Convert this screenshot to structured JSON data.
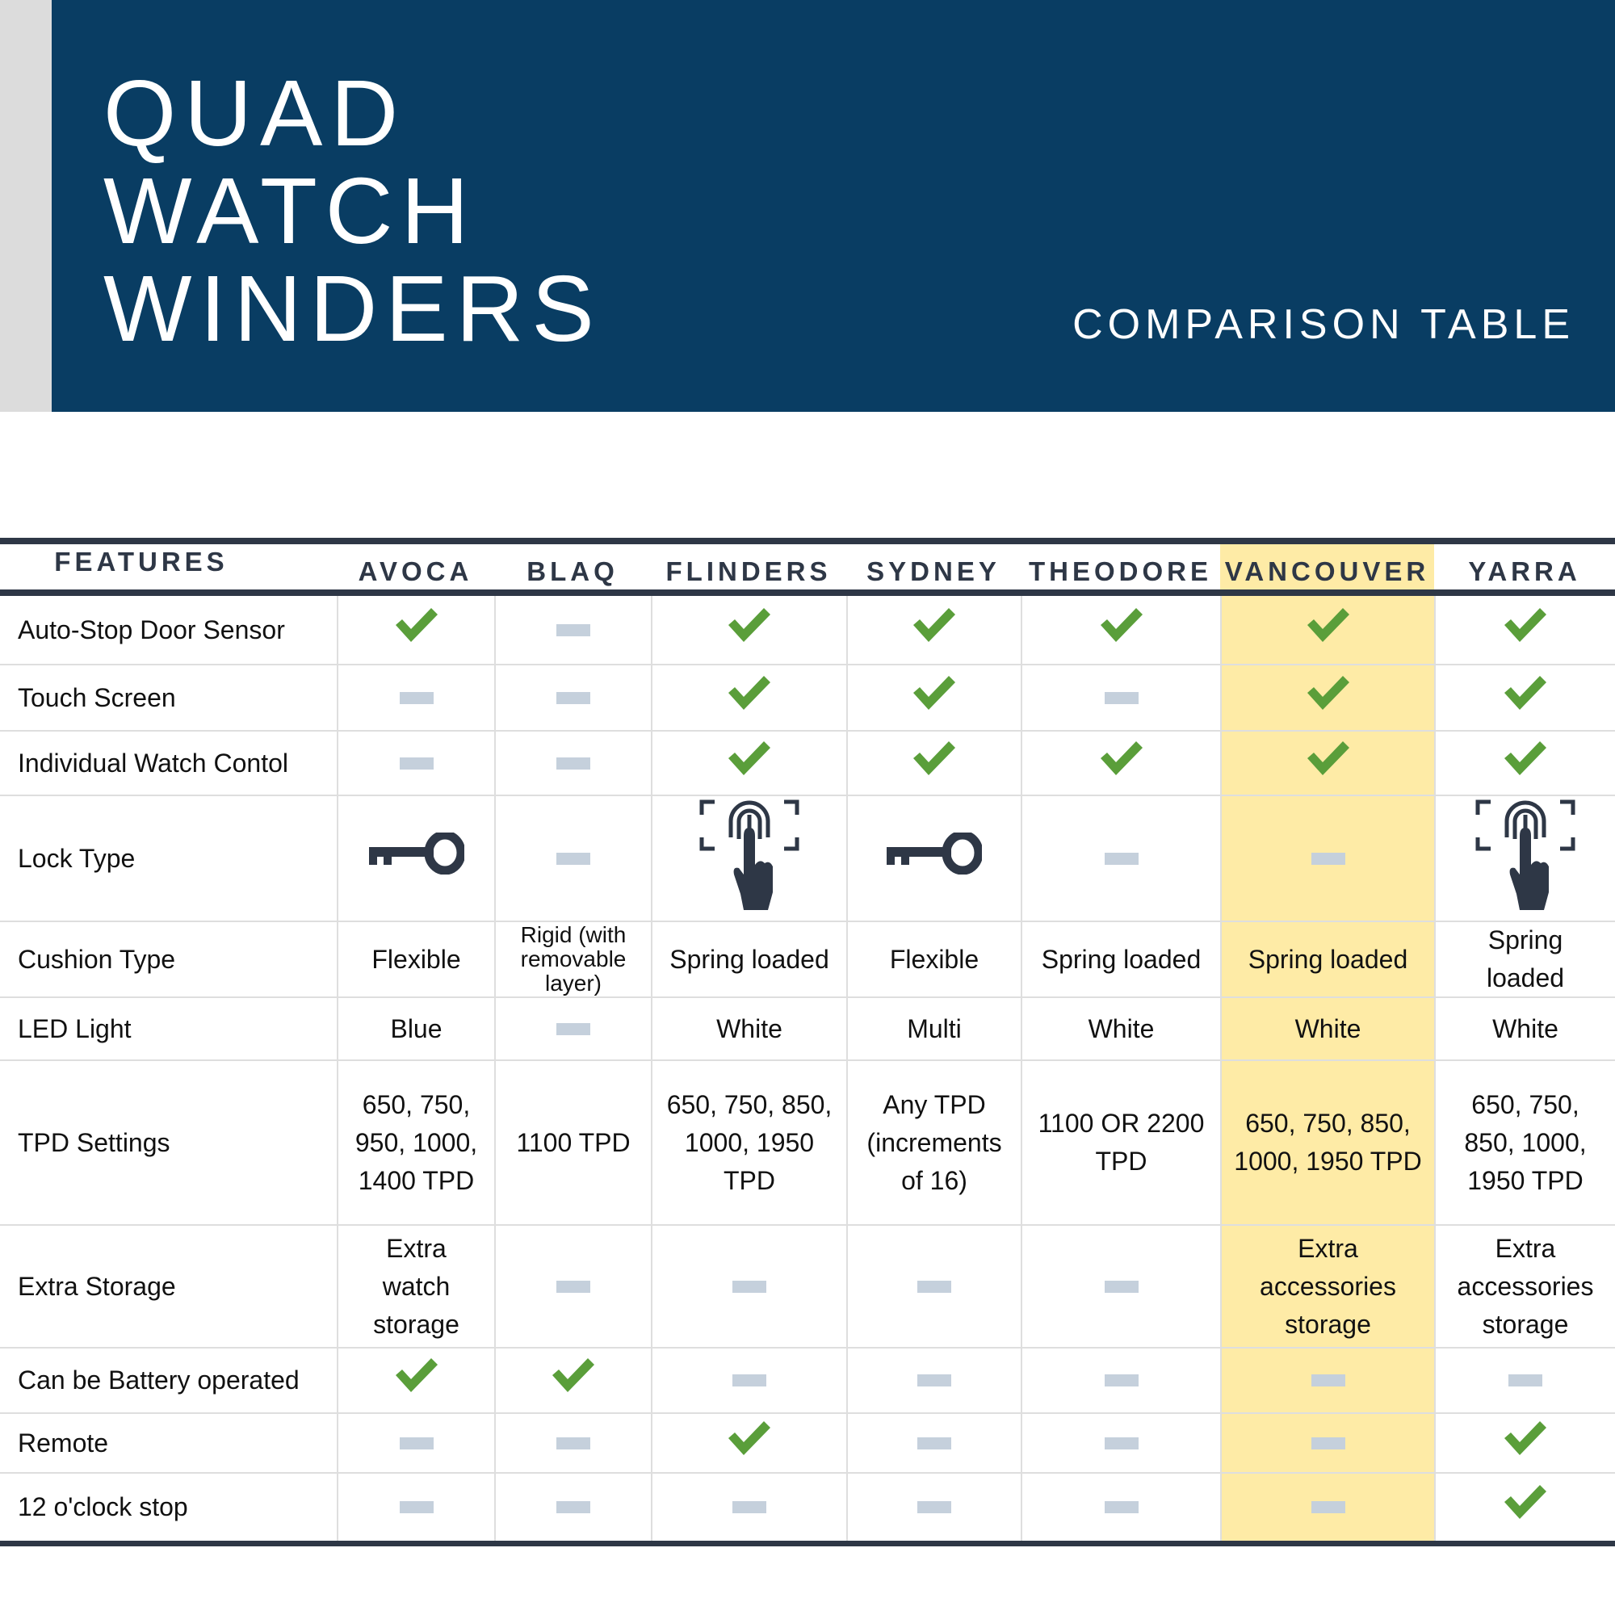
{
  "header": {
    "title_lines": [
      "QUAD",
      "WATCH",
      "WINDERS"
    ],
    "subtitle": "COMPARISON TABLE",
    "background_color": "#093d63"
  },
  "colors": {
    "check": "#5a9e3a",
    "dash": "#c5d0dc",
    "highlight": "#feeba6",
    "icon": "#2e3746"
  },
  "table": {
    "features_label": "FEATURES",
    "highlighted_column": "VANCOUVER",
    "columns": [
      "AVOCA",
      "BLAQ",
      "FLINDERS",
      "SYDNEY",
      "THEODORE",
      "VANCOUVER",
      "YARRA"
    ],
    "rows": [
      {
        "feature": "Auto-Stop Door Sensor",
        "cells": [
          {
            "icon": "check"
          },
          {
            "icon": "dash"
          },
          {
            "icon": "check"
          },
          {
            "icon": "check"
          },
          {
            "icon": "check"
          },
          {
            "icon": "check"
          },
          {
            "icon": "check"
          }
        ]
      },
      {
        "feature": "Touch Screen",
        "cells": [
          {
            "icon": "dash"
          },
          {
            "icon": "dash"
          },
          {
            "icon": "check"
          },
          {
            "icon": "check"
          },
          {
            "icon": "dash"
          },
          {
            "icon": "check"
          },
          {
            "icon": "check"
          }
        ]
      },
      {
        "feature": "Individual Watch Contol",
        "cells": [
          {
            "icon": "dash"
          },
          {
            "icon": "dash"
          },
          {
            "icon": "check"
          },
          {
            "icon": "check"
          },
          {
            "icon": "check"
          },
          {
            "icon": "check"
          },
          {
            "icon": "check"
          }
        ]
      },
      {
        "feature": "Lock Type",
        "cells": [
          {
            "icon": "key"
          },
          {
            "icon": "dash"
          },
          {
            "icon": "fingerprint"
          },
          {
            "icon": "key"
          },
          {
            "icon": "dash"
          },
          {
            "icon": "dash"
          },
          {
            "icon": "fingerprint"
          }
        ]
      },
      {
        "feature": "Cushion Type",
        "cells": [
          {
            "text": "Flexible"
          },
          {
            "text": "Rigid (with removable layer)"
          },
          {
            "text": "Spring loaded"
          },
          {
            "text": "Flexible"
          },
          {
            "text": "Spring loaded"
          },
          {
            "text": "Spring loaded"
          },
          {
            "text": "Spring loaded"
          }
        ]
      },
      {
        "feature": "LED Light",
        "cells": [
          {
            "text": "Blue"
          },
          {
            "icon": "dash"
          },
          {
            "text": "White"
          },
          {
            "text": "Multi"
          },
          {
            "text": "White"
          },
          {
            "text": "White"
          },
          {
            "text": "White"
          }
        ]
      },
      {
        "feature": "TPD Settings",
        "cells": [
          {
            "text": "650, 750, 950, 1000, 1400 TPD"
          },
          {
            "text": "1100 TPD"
          },
          {
            "text": "650, 750, 850, 1000, 1950 TPD"
          },
          {
            "text": "Any TPD (increments of 16)"
          },
          {
            "text": "1100 OR 2200 TPD"
          },
          {
            "text": "650, 750, 850, 1000, 1950 TPD"
          },
          {
            "text": "650, 750, 850, 1000, 1950 TPD"
          }
        ]
      },
      {
        "feature": "Extra Storage",
        "cells": [
          {
            "text": "Extra watch storage"
          },
          {
            "icon": "dash"
          },
          {
            "icon": "dash"
          },
          {
            "icon": "dash"
          },
          {
            "icon": "dash"
          },
          {
            "text": "Extra accessories storage"
          },
          {
            "text": "Extra accessories storage"
          }
        ]
      },
      {
        "feature": "Can be Battery operated",
        "cells": [
          {
            "icon": "check"
          },
          {
            "icon": "check"
          },
          {
            "icon": "dash"
          },
          {
            "icon": "dash"
          },
          {
            "icon": "dash"
          },
          {
            "icon": "dash"
          },
          {
            "icon": "dash"
          }
        ]
      },
      {
        "feature": "Remote",
        "cells": [
          {
            "icon": "dash"
          },
          {
            "icon": "dash"
          },
          {
            "icon": "check"
          },
          {
            "icon": "dash"
          },
          {
            "icon": "dash"
          },
          {
            "icon": "dash"
          },
          {
            "icon": "check"
          }
        ]
      },
      {
        "feature": "12 o'clock stop",
        "cells": [
          {
            "icon": "dash"
          },
          {
            "icon": "dash"
          },
          {
            "icon": "dash"
          },
          {
            "icon": "dash"
          },
          {
            "icon": "dash"
          },
          {
            "icon": "dash"
          },
          {
            "icon": "check"
          }
        ]
      }
    ]
  }
}
